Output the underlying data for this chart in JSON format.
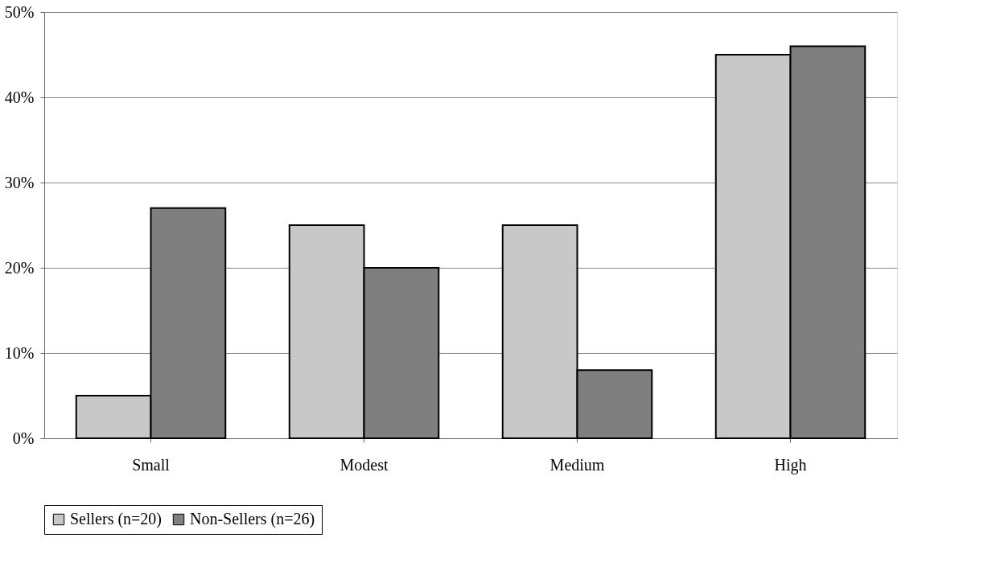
{
  "chart_data": {
    "type": "bar",
    "categories": [
      "Small",
      "Modest",
      "Medium",
      "High"
    ],
    "series": [
      {
        "name": "Sellers (n=20)",
        "color": "#c8c8c8",
        "values": [
          5,
          25,
          25,
          45
        ]
      },
      {
        "name": "Non-Sellers (n=26)",
        "color": "#7f7f7f",
        "values": [
          27,
          20,
          8,
          46
        ]
      }
    ],
    "ylim": [
      0,
      50
    ],
    "yticks": [
      {
        "value": 0,
        "label": "0%"
      },
      {
        "value": 10,
        "label": "10%"
      },
      {
        "value": 20,
        "label": "20%"
      },
      {
        "value": 30,
        "label": "30%"
      },
      {
        "value": 40,
        "label": "40%"
      },
      {
        "value": 50,
        "label": "50%"
      }
    ],
    "grid": "y",
    "legend": "bottom"
  }
}
